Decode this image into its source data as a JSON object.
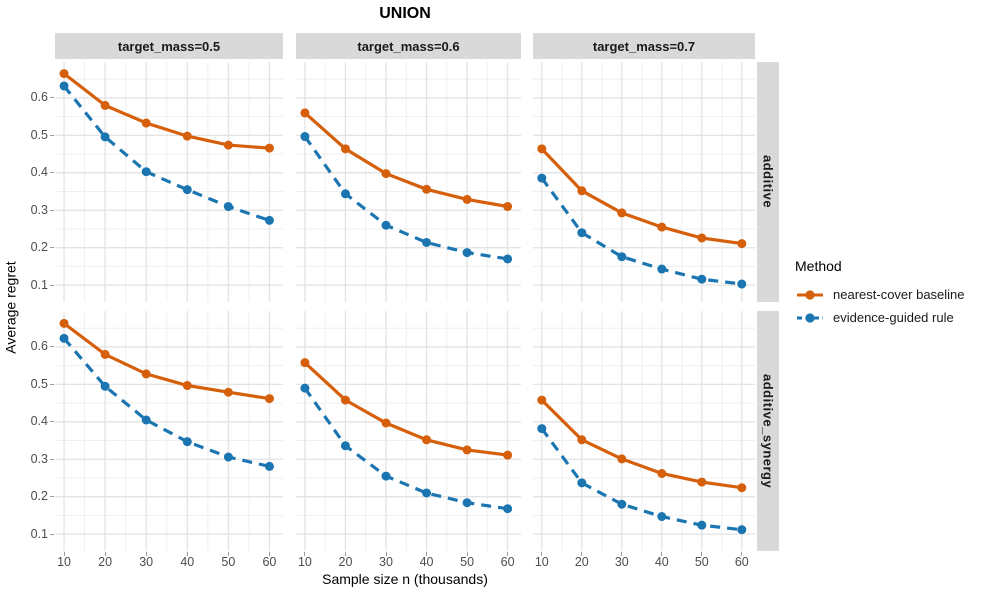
{
  "title": "UNION",
  "axes": {
    "x_label": "Sample size n (thousands)",
    "y_label": "Average regret",
    "x_tick_labels": [
      "10",
      "20",
      "30",
      "40",
      "50",
      "60"
    ],
    "y_tick_labels": [
      "0.1",
      "0.2",
      "0.3",
      "0.4",
      "0.5",
      "0.6"
    ]
  },
  "legend": {
    "title": "Method",
    "items": [
      {
        "label": "nearest-cover baseline",
        "color": "#D55F0A",
        "dashed": false
      },
      {
        "label": "evidence-guided rule",
        "color": "#1B75B1",
        "dashed": true
      }
    ]
  },
  "colors": {
    "orange": "#D55F0A",
    "blue": "#1B75B1",
    "strip_bg": "#D9D9D9",
    "grid_major": "#E3E3E3",
    "grid_minor": "#EFEFEF",
    "tick_text": "#4D4D4D",
    "panel_bg": "#FFFFFF"
  },
  "chart_data": {
    "type": "line",
    "title": "UNION",
    "xlabel": "Sample size n (thousands)",
    "ylabel": "Average regret",
    "x": [
      10,
      20,
      30,
      40,
      50,
      60
    ],
    "x_tick_values": [
      10,
      20,
      30,
      40,
      50,
      60
    ],
    "y_tick_values": [
      0.1,
      0.2,
      0.3,
      0.4,
      0.5,
      0.6
    ],
    "x_minor": [
      15,
      25,
      35,
      45,
      55
    ],
    "y_minor": [
      0.15,
      0.25,
      0.35,
      0.45,
      0.55,
      0.65
    ],
    "xlim": [
      7.8,
      63.3
    ],
    "ylim": [
      0.055,
      0.696
    ],
    "grid": true,
    "legend_position": "right",
    "facet_columns": [
      "target_mass=0.5",
      "target_mass=0.6",
      "target_mass=0.7"
    ],
    "facet_rows": [
      "additive",
      "additive_synergy"
    ],
    "series_styles": {
      "nearest-cover baseline": {
        "color": "#D55F0A",
        "dashed": false
      },
      "evidence-guided rule": {
        "color": "#1B75B1",
        "dashed": true
      }
    },
    "panels": [
      {
        "row": "additive",
        "col": "target_mass=0.5",
        "series": [
          {
            "name": "nearest-cover baseline",
            "values": [
              0.665,
              0.58,
              0.533,
              0.498,
              0.474,
              0.466
            ]
          },
          {
            "name": "evidence-guided rule",
            "values": [
              0.632,
              0.496,
              0.403,
              0.355,
              0.31,
              0.273
            ]
          }
        ]
      },
      {
        "row": "additive",
        "col": "target_mass=0.6",
        "series": [
          {
            "name": "nearest-cover baseline",
            "values": [
              0.56,
              0.464,
              0.398,
              0.356,
              0.329,
              0.31
            ]
          },
          {
            "name": "evidence-guided rule",
            "values": [
              0.497,
              0.344,
              0.26,
              0.214,
              0.187,
              0.17
            ]
          }
        ]
      },
      {
        "row": "additive",
        "col": "target_mass=0.7",
        "series": [
          {
            "name": "nearest-cover baseline",
            "values": [
              0.464,
              0.352,
              0.293,
              0.255,
              0.226,
              0.211
            ]
          },
          {
            "name": "evidence-guided rule",
            "values": [
              0.386,
              0.24,
              0.176,
              0.143,
              0.116,
              0.103
            ]
          }
        ]
      },
      {
        "row": "additive_synergy",
        "col": "target_mass=0.5",
        "series": [
          {
            "name": "nearest-cover baseline",
            "values": [
              0.663,
              0.58,
              0.528,
              0.497,
              0.479,
              0.462
            ]
          },
          {
            "name": "evidence-guided rule",
            "values": [
              0.623,
              0.495,
              0.405,
              0.347,
              0.306,
              0.281
            ]
          }
        ]
      },
      {
        "row": "additive_synergy",
        "col": "target_mass=0.6",
        "series": [
          {
            "name": "nearest-cover baseline",
            "values": [
              0.558,
              0.458,
              0.397,
              0.352,
              0.325,
              0.311
            ]
          },
          {
            "name": "evidence-guided rule",
            "values": [
              0.49,
              0.336,
              0.255,
              0.21,
              0.184,
              0.168
            ]
          }
        ]
      },
      {
        "row": "additive_synergy",
        "col": "target_mass=0.7",
        "series": [
          {
            "name": "nearest-cover baseline",
            "values": [
              0.458,
              0.352,
              0.301,
              0.262,
              0.239,
              0.224
            ]
          },
          {
            "name": "evidence-guided rule",
            "values": [
              0.382,
              0.237,
              0.18,
              0.147,
              0.124,
              0.112
            ]
          }
        ]
      }
    ]
  }
}
